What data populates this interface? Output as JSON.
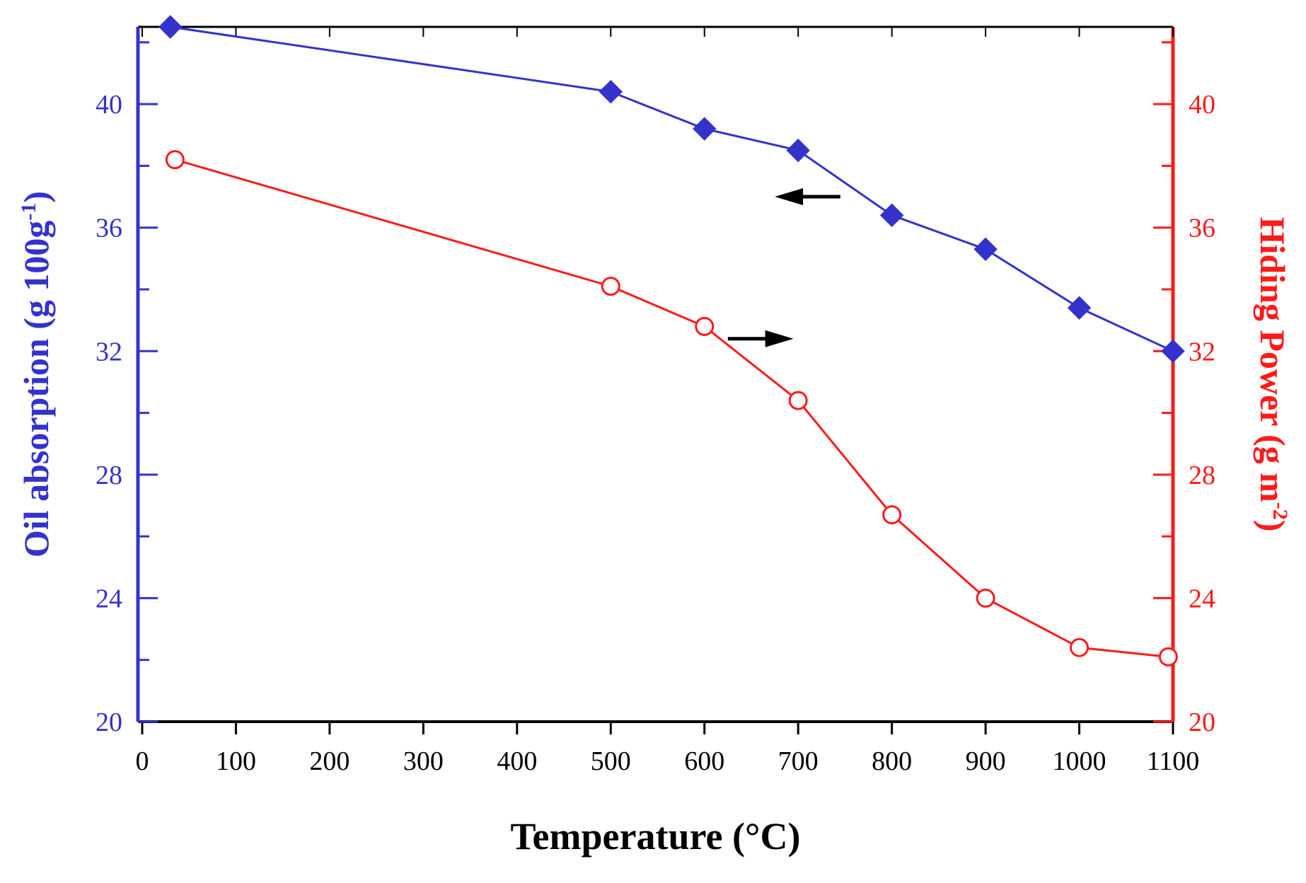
{
  "colors": {
    "left_axis": "#3333cc",
    "right_axis": "#ff1a1a",
    "x_axis": "#000000",
    "left_series": "#3333cc",
    "right_series": "#ff1a1a",
    "arrow": "#000000"
  },
  "chart_data": {
    "type": "line",
    "xlabel": "Temperature (°C)",
    "xlim": [
      0,
      1100
    ],
    "x_ticks": [
      0,
      100,
      200,
      300,
      400,
      500,
      600,
      700,
      800,
      900,
      1000,
      1100
    ],
    "x_tick_labels": [
      "0",
      "100",
      "200",
      "300",
      "400",
      "500",
      "600",
      "700",
      "800",
      "900",
      "1000",
      "1100"
    ],
    "y_left": {
      "label_main": "Oil absorption (g 100g",
      "label_sup": "-1",
      "label_end": ")",
      "ylim": [
        20,
        42.5
      ],
      "ticks": [
        20,
        24,
        28,
        32,
        36,
        40
      ],
      "tick_labels": [
        "20",
        "24",
        "28",
        "32",
        "36",
        "40"
      ],
      "minor_step": 2
    },
    "y_right": {
      "label_main": "Hiding Power (g m",
      "label_sup": "-2",
      "label_end": ")",
      "ylim": [
        20,
        42.5
      ],
      "ticks": [
        20,
        24,
        28,
        32,
        36,
        40
      ],
      "tick_labels": [
        "20",
        "24",
        "28",
        "32",
        "36",
        "40"
      ],
      "minor_step": 2
    },
    "series": [
      {
        "name": "Oil absorption",
        "axis": "left",
        "marker": "filled-diamond",
        "x": [
          30,
          500,
          600,
          700,
          800,
          900,
          1000,
          1100
        ],
        "values": [
          42.5,
          40.4,
          39.2,
          38.5,
          36.4,
          35.3,
          33.4,
          32.0
        ]
      },
      {
        "name": "Hiding Power",
        "axis": "right",
        "marker": "open-circle",
        "x": [
          35,
          500,
          600,
          700,
          800,
          900,
          1000,
          1095
        ],
        "values": [
          38.2,
          34.1,
          32.8,
          30.4,
          26.7,
          24.0,
          22.4,
          22.1
        ]
      }
    ],
    "annotations": [
      {
        "type": "arrow",
        "direction": "left",
        "points_to": "left axis",
        "x": [
          675,
          745
        ],
        "y": 37.0
      },
      {
        "type": "arrow",
        "direction": "right",
        "points_to": "right axis",
        "x": [
          625,
          695
        ],
        "y": 32.4
      }
    ]
  }
}
